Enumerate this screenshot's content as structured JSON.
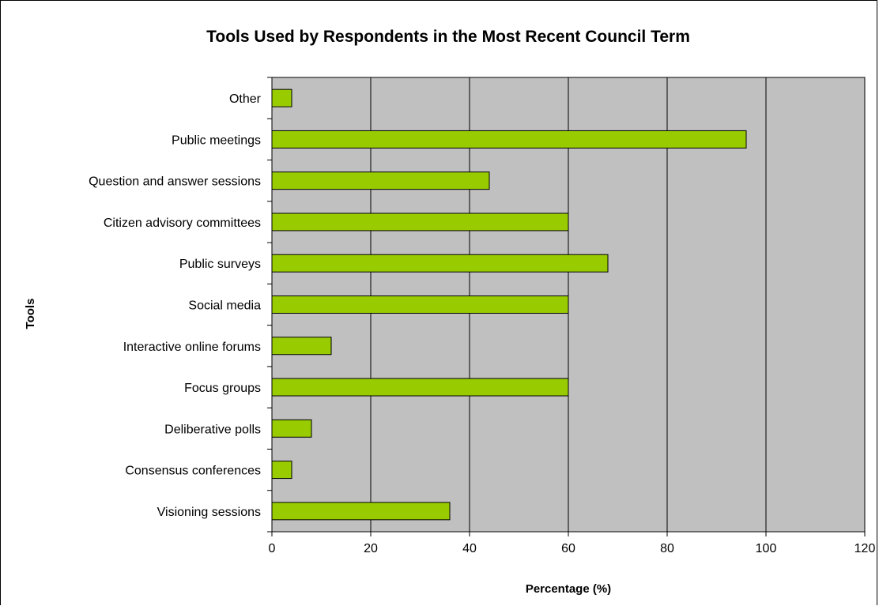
{
  "chart_data": {
    "type": "bar",
    "orientation": "horizontal",
    "title": "Tools Used by Respondents in the Most Recent Council Term",
    "xlabel": "Percentage (%)",
    "ylabel": "Tools",
    "xlim": [
      0,
      120
    ],
    "xticks": [
      0,
      20,
      40,
      60,
      80,
      100,
      120
    ],
    "grid": "vertical",
    "legend": "none",
    "categories": [
      "Other",
      "Public meetings",
      "Question and answer sessions",
      "Citizen advisory committees",
      "Public surveys",
      "Social media",
      "Interactive online forums",
      "Focus groups",
      "Deliberative polls",
      "Consensus conferences",
      "Visioning sessions"
    ],
    "values": [
      4,
      96,
      44,
      60,
      68,
      60,
      12,
      60,
      8,
      4,
      36
    ],
    "colors": {
      "bar": "#99cc00",
      "plot_background": "#c0c0c0",
      "gridline": "#000000"
    }
  }
}
